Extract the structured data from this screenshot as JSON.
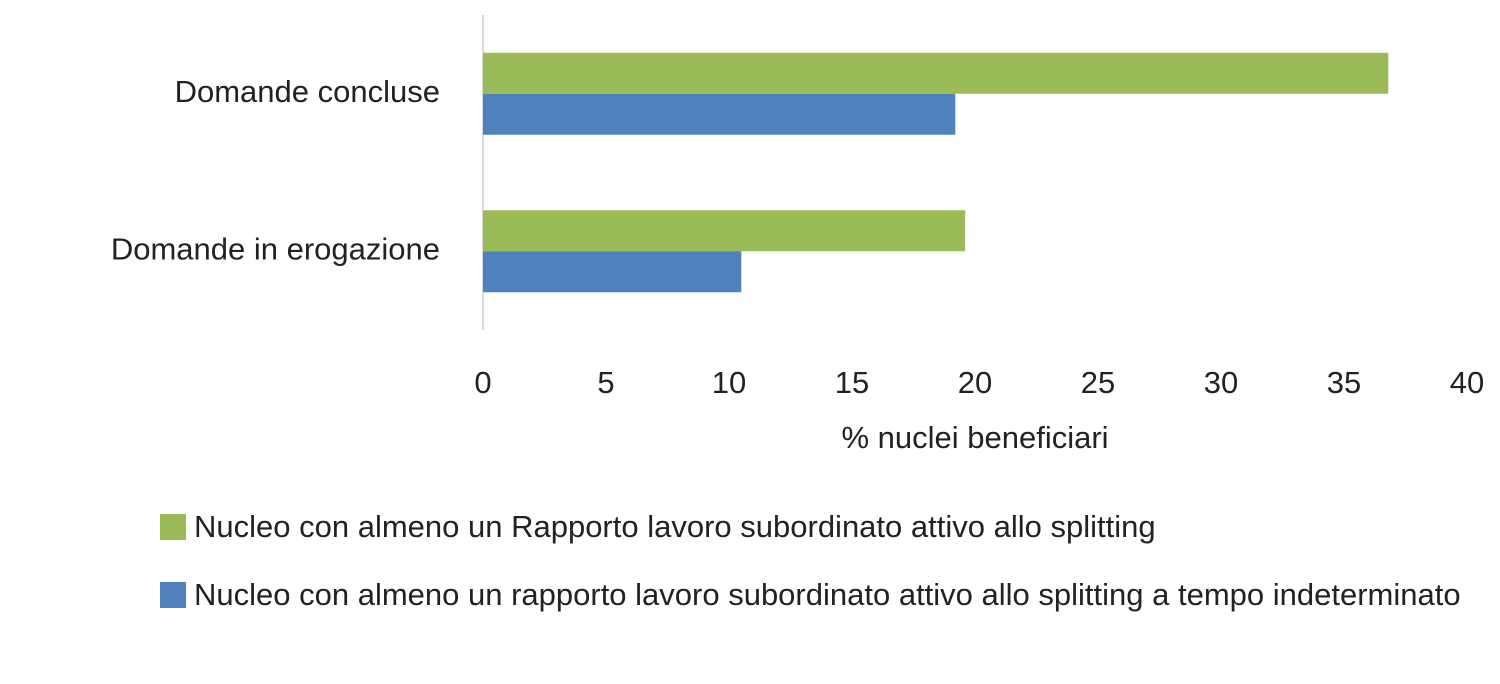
{
  "chart_data": {
    "type": "barh",
    "categories": [
      "Domande concluse",
      "Domande in erogazione"
    ],
    "series": [
      {
        "name": "Nucleo con almeno un Rapporto lavoro subordinato attivo allo splitting",
        "color": "#9bbb59",
        "values": [
          36.8,
          19.6
        ]
      },
      {
        "name": "Nucleo con almeno un rapporto lavoro subordinato attivo allo splitting a tempo indeterminato",
        "color": "#4f81bd",
        "values": [
          19.2,
          10.5
        ]
      }
    ],
    "xlabel": "% nuclei beneficiari",
    "xlim": [
      0,
      40
    ],
    "xticks": [
      0,
      5,
      10,
      15,
      20,
      25,
      30,
      35,
      40
    ],
    "grid": false,
    "legend": "bottom"
  }
}
